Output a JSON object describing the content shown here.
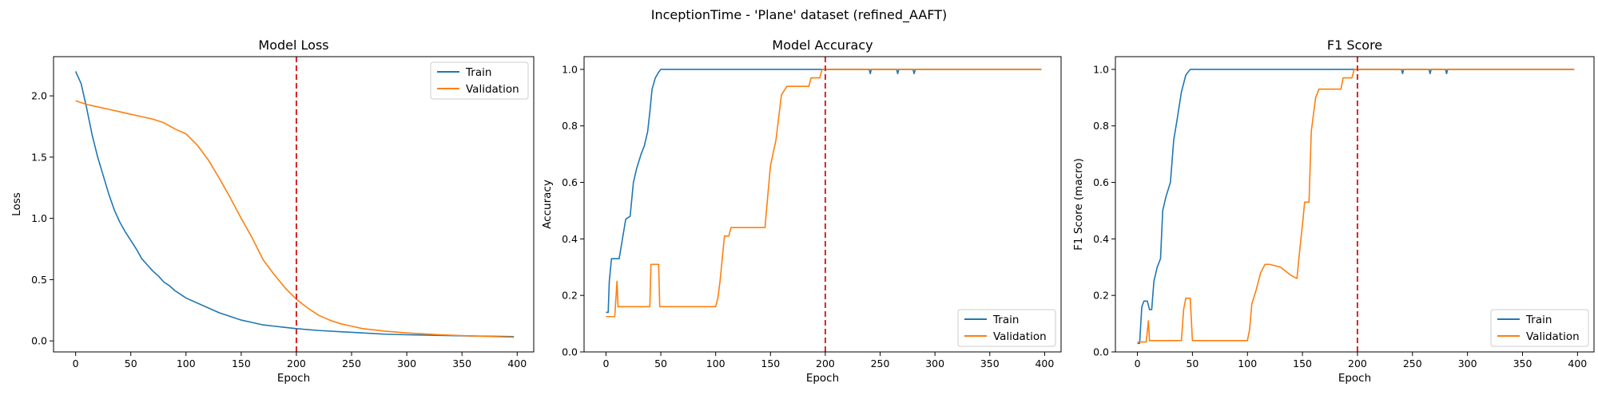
{
  "figure": {
    "suptitle": "InceptionTime - 'Plane' dataset (refined_AAFT)",
    "series_colors": {
      "train": "#1f77b4",
      "validation": "#ff7f0e"
    },
    "marker_color": "#d62728"
  },
  "chart_data": [
    {
      "type": "line",
      "title": "Model Loss",
      "xlabel": "Epoch",
      "ylabel": "Loss",
      "xlim": [
        -20,
        415
      ],
      "ylim": [
        -0.09,
        2.32
      ],
      "xticks": [
        0,
        50,
        100,
        150,
        200,
        250,
        300,
        350,
        400
      ],
      "yticks": [
        0.0,
        0.5,
        1.0,
        1.5,
        2.0
      ],
      "ytick_labels": [
        "0.0",
        "0.5",
        "1.0",
        "1.5",
        "2.0"
      ],
      "vline_x": 200,
      "legend": {
        "position": "top-right",
        "entries": [
          "Train",
          "Validation"
        ]
      },
      "series": [
        {
          "name": "Train",
          "color": "#1f77b4",
          "points": [
            [
              0,
              2.2
            ],
            [
              5,
              2.1
            ],
            [
              10,
              1.9
            ],
            [
              15,
              1.68
            ],
            [
              20,
              1.5
            ],
            [
              25,
              1.35
            ],
            [
              30,
              1.2
            ],
            [
              35,
              1.07
            ],
            [
              40,
              0.97
            ],
            [
              45,
              0.89
            ],
            [
              50,
              0.82
            ],
            [
              55,
              0.75
            ],
            [
              60,
              0.67
            ],
            [
              65,
              0.62
            ],
            [
              70,
              0.57
            ],
            [
              75,
              0.53
            ],
            [
              80,
              0.48
            ],
            [
              85,
              0.45
            ],
            [
              90,
              0.41
            ],
            [
              95,
              0.38
            ],
            [
              100,
              0.35
            ],
            [
              110,
              0.31
            ],
            [
              120,
              0.27
            ],
            [
              130,
              0.23
            ],
            [
              140,
              0.2
            ],
            [
              150,
              0.17
            ],
            [
              160,
              0.15
            ],
            [
              170,
              0.13
            ],
            [
              180,
              0.12
            ],
            [
              190,
              0.11
            ],
            [
              200,
              0.1
            ],
            [
              220,
              0.085
            ],
            [
              240,
              0.075
            ],
            [
              260,
              0.065
            ],
            [
              280,
              0.055
            ],
            [
              300,
              0.05
            ],
            [
              330,
              0.045
            ],
            [
              360,
              0.04
            ],
            [
              397,
              0.035
            ]
          ]
        },
        {
          "name": "Validation",
          "color": "#ff7f0e",
          "points": [
            [
              0,
              1.96
            ],
            [
              10,
              1.93
            ],
            [
              20,
              1.91
            ],
            [
              30,
              1.89
            ],
            [
              40,
              1.87
            ],
            [
              50,
              1.85
            ],
            [
              60,
              1.83
            ],
            [
              70,
              1.81
            ],
            [
              80,
              1.78
            ],
            [
              90,
              1.73
            ],
            [
              100,
              1.69
            ],
            [
              110,
              1.6
            ],
            [
              120,
              1.48
            ],
            [
              130,
              1.33
            ],
            [
              140,
              1.17
            ],
            [
              150,
              1.0
            ],
            [
              160,
              0.84
            ],
            [
              170,
              0.66
            ],
            [
              180,
              0.54
            ],
            [
              190,
              0.43
            ],
            [
              200,
              0.34
            ],
            [
              210,
              0.27
            ],
            [
              220,
              0.21
            ],
            [
              230,
              0.17
            ],
            [
              240,
              0.14
            ],
            [
              250,
              0.12
            ],
            [
              260,
              0.1
            ],
            [
              280,
              0.08
            ],
            [
              300,
              0.065
            ],
            [
              330,
              0.05
            ],
            [
              360,
              0.04
            ],
            [
              397,
              0.03
            ]
          ]
        }
      ]
    },
    {
      "type": "line",
      "title": "Model Accuracy",
      "xlabel": "Epoch",
      "ylabel": "Accuracy",
      "xlim": [
        -20,
        415
      ],
      "ylim": [
        0.0,
        1.045
      ],
      "xticks": [
        0,
        50,
        100,
        150,
        200,
        250,
        300,
        350,
        400
      ],
      "yticks": [
        0.0,
        0.2,
        0.4,
        0.6,
        0.8,
        1.0
      ],
      "ytick_labels": [
        "0.0",
        "0.2",
        "0.4",
        "0.6",
        "0.8",
        "1.0"
      ],
      "vline_x": 200,
      "legend": {
        "position": "bottom-right",
        "entries": [
          "Train",
          "Validation"
        ]
      },
      "series": [
        {
          "name": "Train",
          "color": "#1f77b4",
          "points": [
            [
              0,
              0.14
            ],
            [
              2,
              0.14
            ],
            [
              3,
              0.25
            ],
            [
              5,
              0.33
            ],
            [
              12,
              0.33
            ],
            [
              15,
              0.4
            ],
            [
              18,
              0.47
            ],
            [
              22,
              0.48
            ],
            [
              25,
              0.6
            ],
            [
              28,
              0.65
            ],
            [
              32,
              0.7
            ],
            [
              35,
              0.73
            ],
            [
              38,
              0.78
            ],
            [
              40,
              0.85
            ],
            [
              42,
              0.93
            ],
            [
              45,
              0.97
            ],
            [
              48,
              0.99
            ],
            [
              50,
              1.0
            ],
            [
              240,
              1.0
            ],
            [
              241,
              0.985
            ],
            [
              242,
              1.0
            ],
            [
              265,
              1.0
            ],
            [
              266,
              0.985
            ],
            [
              267,
              1.0
            ],
            [
              280,
              1.0
            ],
            [
              281,
              0.985
            ],
            [
              282,
              1.0
            ],
            [
              397,
              1.0
            ]
          ]
        },
        {
          "name": "Validation",
          "color": "#ff7f0e",
          "points": [
            [
              0,
              0.125
            ],
            [
              8,
              0.125
            ],
            [
              10,
              0.25
            ],
            [
              11,
              0.16
            ],
            [
              40,
              0.16
            ],
            [
              41,
              0.31
            ],
            [
              48,
              0.31
            ],
            [
              49,
              0.16
            ],
            [
              100,
              0.16
            ],
            [
              102,
              0.19
            ],
            [
              104,
              0.25
            ],
            [
              106,
              0.33
            ],
            [
              108,
              0.41
            ],
            [
              112,
              0.41
            ],
            [
              114,
              0.44
            ],
            [
              145,
              0.44
            ],
            [
              147,
              0.53
            ],
            [
              150,
              0.66
            ],
            [
              155,
              0.75
            ],
            [
              160,
              0.91
            ],
            [
              165,
              0.94
            ],
            [
              185,
              0.94
            ],
            [
              187,
              0.97
            ],
            [
              195,
              0.97
            ],
            [
              197,
              1.0
            ],
            [
              397,
              1.0
            ]
          ]
        }
      ]
    },
    {
      "type": "line",
      "title": "F1 Score",
      "xlabel": "Epoch",
      "ylabel": "F1 Score (macro)",
      "xlim": [
        -20,
        415
      ],
      "ylim": [
        0.0,
        1.045
      ],
      "xticks": [
        0,
        50,
        100,
        150,
        200,
        250,
        300,
        350,
        400
      ],
      "yticks": [
        0.0,
        0.2,
        0.4,
        0.6,
        0.8,
        1.0
      ],
      "ytick_labels": [
        "0.0",
        "0.2",
        "0.4",
        "0.6",
        "0.8",
        "1.0"
      ],
      "vline_x": 200,
      "legend": {
        "position": "bottom-right",
        "entries": [
          "Train",
          "Validation"
        ]
      },
      "series": [
        {
          "name": "Train",
          "color": "#1f77b4",
          "points": [
            [
              0,
              0.03
            ],
            [
              2,
              0.03
            ],
            [
              4,
              0.16
            ],
            [
              6,
              0.18
            ],
            [
              9,
              0.18
            ],
            [
              11,
              0.15
            ],
            [
              13,
              0.15
            ],
            [
              15,
              0.25
            ],
            [
              18,
              0.3
            ],
            [
              21,
              0.33
            ],
            [
              23,
              0.5
            ],
            [
              26,
              0.55
            ],
            [
              30,
              0.6
            ],
            [
              33,
              0.75
            ],
            [
              36,
              0.82
            ],
            [
              40,
              0.92
            ],
            [
              44,
              0.98
            ],
            [
              48,
              1.0
            ],
            [
              240,
              1.0
            ],
            [
              241,
              0.985
            ],
            [
              242,
              1.0
            ],
            [
              265,
              1.0
            ],
            [
              266,
              0.985
            ],
            [
              267,
              1.0
            ],
            [
              280,
              1.0
            ],
            [
              281,
              0.985
            ],
            [
              282,
              1.0
            ],
            [
              397,
              1.0
            ]
          ]
        },
        {
          "name": "Validation",
          "color": "#ff7f0e",
          "points": [
            [
              0,
              0.035
            ],
            [
              8,
              0.035
            ],
            [
              10,
              0.11
            ],
            [
              11,
              0.04
            ],
            [
              40,
              0.04
            ],
            [
              42,
              0.15
            ],
            [
              44,
              0.19
            ],
            [
              48,
              0.19
            ],
            [
              50,
              0.04
            ],
            [
              100,
              0.04
            ],
            [
              102,
              0.08
            ],
            [
              104,
              0.17
            ],
            [
              108,
              0.22
            ],
            [
              112,
              0.28
            ],
            [
              116,
              0.31
            ],
            [
              120,
              0.31
            ],
            [
              130,
              0.3
            ],
            [
              140,
              0.27
            ],
            [
              145,
              0.26
            ],
            [
              147,
              0.34
            ],
            [
              150,
              0.45
            ],
            [
              152,
              0.53
            ],
            [
              156,
              0.53
            ],
            [
              158,
              0.78
            ],
            [
              162,
              0.9
            ],
            [
              165,
              0.93
            ],
            [
              185,
              0.93
            ],
            [
              187,
              0.97
            ],
            [
              195,
              0.97
            ],
            [
              197,
              1.0
            ],
            [
              397,
              1.0
            ]
          ]
        }
      ]
    }
  ]
}
